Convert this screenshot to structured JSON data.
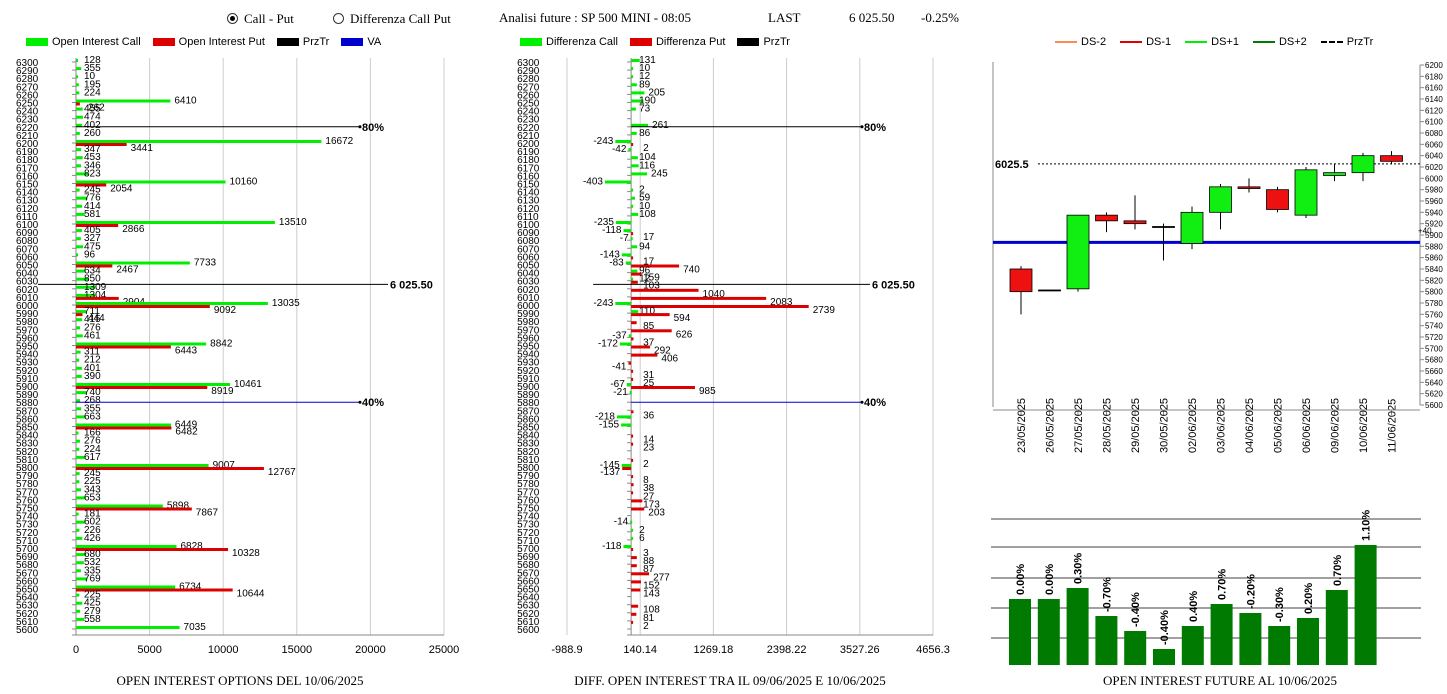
{
  "header": {
    "radio_call_put": "Call - Put",
    "radio_diff": "Differenza Call Put",
    "title": "Analisi future : SP 500 MINI - 08:05",
    "last_label": "LAST",
    "last_value": "6 025.50",
    "change": "-0.25%"
  },
  "legends": {
    "left": [
      "Open Interest Call",
      "Open Interest Put",
      "PrzTr",
      "VA"
    ],
    "mid": [
      "Differenza Call",
      "Differenza Put",
      "PrzTr"
    ],
    "right": [
      "DS-2",
      "DS-1",
      "DS+1",
      "DS+2",
      "PrzTr"
    ]
  },
  "colors": {
    "call": "#00ee00",
    "put": "#dd0000",
    "line": "#000000",
    "va": "#0000cc",
    "bar_green": "#007a00"
  },
  "footers": {
    "left": "OPEN INTEREST OPTIONS DEL 10/06/2025",
    "mid": "DIFF. OPEN INTEREST TRA IL 09/06/2025 E 10/06/2025",
    "right": "OPEN INTEREST FUTURE AL 10/06/2025"
  },
  "chart_data": [
    {
      "type": "bar",
      "orientation": "horizontal",
      "strikes": [
        6300,
        6290,
        6280,
        6270,
        6260,
        6250,
        6240,
        6230,
        6220,
        6210,
        6200,
        6190,
        6180,
        6170,
        6160,
        6150,
        6140,
        6130,
        6120,
        6110,
        6100,
        6090,
        6080,
        6070,
        6060,
        6050,
        6040,
        6030,
        6020,
        6010,
        6000,
        5990,
        5980,
        5970,
        5960,
        5950,
        5940,
        5930,
        5920,
        5910,
        5900,
        5890,
        5880,
        5870,
        5860,
        5850,
        5840,
        5830,
        5820,
        5810,
        5800,
        5790,
        5780,
        5770,
        5760,
        5750,
        5740,
        5730,
        5720,
        5710,
        5700,
        5690,
        5680,
        5670,
        5660,
        5650,
        5640,
        5630,
        5620,
        5610,
        5600
      ],
      "series": [
        {
          "name": "Open Interest Call",
          "values": [
            128,
            355,
            10,
            195,
            224,
            6410,
            455,
            474,
            402,
            260,
            16672,
            347,
            453,
            346,
            823,
            10160,
            245,
            776,
            414,
            581,
            13510,
            405,
            327,
            475,
            96,
            7733,
            634,
            850,
            1309,
            1304,
            13035,
            711,
            415,
            276,
            461,
            8842,
            311,
            212,
            401,
            390,
            10461,
            740,
            268,
            355,
            663,
            6449,
            166,
            276,
            224,
            617,
            9007,
            245,
            225,
            343,
            653,
            5898,
            181,
            602,
            226,
            426,
            6828,
            680,
            532,
            335,
            769,
            6734,
            225,
            425,
            279,
            558,
            7035
          ]
        },
        {
          "name": "Open Interest Put",
          "values": [
            0,
            0,
            0,
            0,
            0,
            262,
            0,
            0,
            0,
            0,
            3441,
            0,
            0,
            0,
            0,
            2054,
            0,
            0,
            0,
            0,
            2866,
            0,
            0,
            0,
            0,
            2467,
            0,
            0,
            0,
            2904,
            9092,
            444,
            0,
            0,
            0,
            6443,
            0,
            0,
            0,
            0,
            8919,
            0,
            0,
            0,
            0,
            6482,
            0,
            0,
            0,
            0,
            12767,
            0,
            0,
            0,
            0,
            7867,
            0,
            0,
            0,
            0,
            10328,
            0,
            0,
            0,
            0,
            10644,
            0,
            0,
            0,
            0,
            0
          ]
        }
      ],
      "annotations": [
        "80%",
        "40%",
        "6 025.50"
      ],
      "xticks": [
        "0",
        "5000",
        "10000",
        "15000",
        "20000",
        "25000"
      ],
      "xlim": [
        0,
        25000
      ]
    },
    {
      "type": "bar",
      "orientation": "horizontal",
      "strikes": [
        6300,
        6290,
        6280,
        6270,
        6260,
        6250,
        6240,
        6230,
        6220,
        6210,
        6200,
        6190,
        6180,
        6170,
        6160,
        6150,
        6140,
        6130,
        6120,
        6110,
        6100,
        6090,
        6080,
        6070,
        6060,
        6050,
        6040,
        6030,
        6020,
        6010,
        6000,
        5990,
        5980,
        5970,
        5960,
        5950,
        5940,
        5930,
        5920,
        5910,
        5900,
        5890,
        5880,
        5870,
        5860,
        5850,
        5840,
        5830,
        5820,
        5810,
        5800,
        5790,
        5780,
        5770,
        5760,
        5750,
        5740,
        5730,
        5720,
        5710,
        5700,
        5690,
        5680,
        5670,
        5660,
        5650,
        5640,
        5630,
        5620,
        5610,
        5600
      ],
      "series": [
        {
          "name": "Differenza Call",
          "values": [
            131,
            10,
            12,
            89,
            205,
            190,
            73,
            0,
            261,
            86,
            -243,
            -42,
            104,
            116,
            245,
            -403,
            2,
            59,
            10,
            108,
            -235,
            -118,
            -7,
            94,
            -143,
            -83,
            96,
            12,
            0,
            0,
            -243,
            110,
            0,
            0,
            -37,
            -172,
            0,
            0,
            0,
            0,
            -67,
            -21,
            0,
            0,
            -218,
            -155,
            0,
            0,
            0,
            0,
            -145,
            0,
            0,
            0,
            0,
            0,
            0,
            -14,
            2,
            6,
            -118,
            0,
            0,
            0,
            0,
            0,
            0,
            0,
            0,
            0,
            0
          ]
        },
        {
          "name": "Differenza Put",
          "values": [
            0,
            0,
            0,
            0,
            0,
            0,
            0,
            0,
            0,
            0,
            2,
            0,
            0,
            0,
            0,
            0,
            0,
            0,
            0,
            0,
            0,
            17,
            0,
            0,
            17,
            740,
            159,
            103,
            1040,
            2083,
            2739,
            594,
            85,
            626,
            37,
            292,
            406,
            -41,
            31,
            25,
            985,
            0,
            0,
            36,
            0,
            0,
            14,
            23,
            0,
            2,
            -137,
            8,
            38,
            27,
            173,
            203,
            0,
            0,
            0,
            0,
            3,
            88,
            87,
            277,
            152,
            143,
            0,
            108,
            81,
            2,
            0
          ]
        }
      ],
      "annotations": [
        "80%",
        "40%",
        "6 025.50"
      ],
      "xticks": [
        "-988.9",
        "140.14",
        "1269.18",
        "2398.22",
        "3527.26",
        "4656.3"
      ],
      "xlim": [
        -988.9,
        4656.3
      ]
    },
    {
      "type": "candlestick",
      "dates": [
        "23/05/2025",
        "26/05/2025",
        "27/05/2025",
        "28/05/2025",
        "29/05/2025",
        "30/05/2025",
        "02/06/2025",
        "03/06/2025",
        "04/06/2025",
        "05/06/2025",
        "06/06/2025",
        "09/06/2025",
        "10/06/2025",
        "11/06/2025"
      ],
      "candles": [
        {
          "open": 5840,
          "close": 5800,
          "high": 5845,
          "low": 5760,
          "color": "red"
        },
        {
          "open": 5803,
          "close": 5803,
          "high": 5803,
          "low": 5803,
          "color": "flat"
        },
        {
          "open": 5805,
          "close": 5935,
          "high": 5935,
          "low": 5800,
          "color": "green"
        },
        {
          "open": 5935,
          "close": 5925,
          "high": 5940,
          "low": 5905,
          "color": "red"
        },
        {
          "open": 5925,
          "close": 5920,
          "high": 5970,
          "low": 5910,
          "color": "red"
        },
        {
          "open": 5915,
          "close": 5915,
          "high": 5920,
          "low": 5855,
          "color": "flat"
        },
        {
          "open": 5885,
          "close": 5940,
          "high": 5950,
          "low": 5875,
          "color": "green"
        },
        {
          "open": 5940,
          "close": 5985,
          "high": 5990,
          "low": 5910,
          "color": "green"
        },
        {
          "open": 5985,
          "close": 5982,
          "high": 6000,
          "low": 5975,
          "color": "red"
        },
        {
          "open": 5980,
          "close": 5945,
          "high": 5985,
          "low": 5940,
          "color": "red"
        },
        {
          "open": 5935,
          "close": 6015,
          "high": 6020,
          "low": 5930,
          "color": "green"
        },
        {
          "open": 6005,
          "close": 6010,
          "high": 6025,
          "low": 5995,
          "color": "green"
        },
        {
          "open": 6010,
          "close": 6040,
          "high": 6045,
          "low": 5995,
          "color": "green"
        },
        {
          "open": 6040,
          "close": 6030,
          "high": 6048,
          "low": 6025,
          "color": "red"
        }
      ],
      "przTr": 6025.5,
      "przTr_label": "6025.5",
      "va_line": 5887,
      "va_label": "+40",
      "yticks": [
        6200,
        6180,
        6160,
        6140,
        6120,
        6100,
        6080,
        6060,
        6040,
        6020,
        6000,
        5980,
        5960,
        5940,
        5920,
        5900,
        5880,
        5860,
        5840,
        5820,
        5800,
        5780,
        5760,
        5740,
        5720,
        5700,
        5680,
        5660,
        5640,
        5620,
        5600
      ],
      "ylim": [
        5600,
        6200
      ]
    },
    {
      "type": "bar",
      "values_label": [
        "0.00%",
        "0.00%",
        "0.30%",
        "-0.70%",
        "-0.40%",
        "-0.40%",
        "0.40%",
        "0.70%",
        "-0.20%",
        "-0.30%",
        "0.20%",
        "0.70%",
        "1.10%"
      ],
      "values": [
        0.0,
        0.0,
        0.3,
        -0.7,
        -0.4,
        -0.4,
        0.4,
        0.7,
        -0.2,
        -0.3,
        0.2,
        0.7,
        1.1
      ]
    }
  ]
}
